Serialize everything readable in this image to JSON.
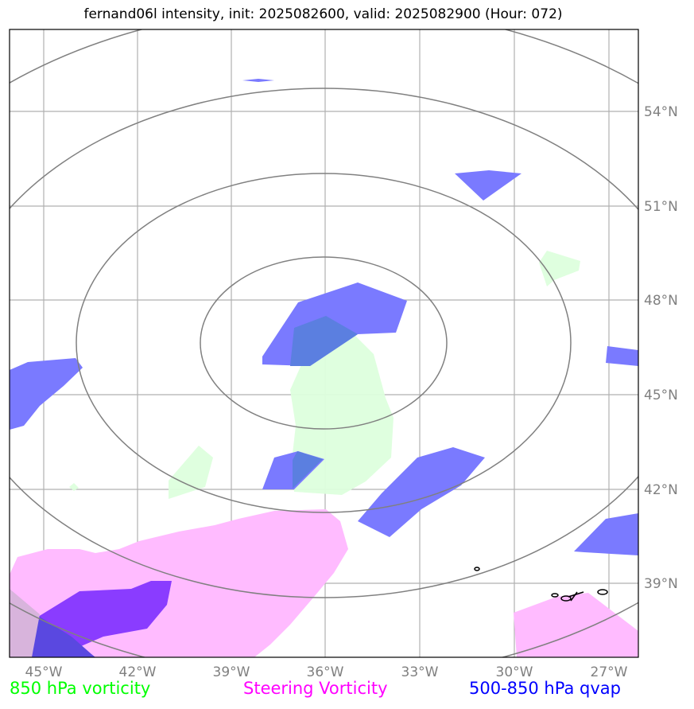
{
  "title": "fernand06l intensity, init: 2025082600, valid: 2025082900 (Hour: 072)",
  "longitude_labels": [
    "45°W",
    "42°W",
    "39°W",
    "36°W",
    "33°W",
    "30°W",
    "27°W"
  ],
  "latitude_labels": [
    "54°N",
    "51°N",
    "48°N",
    "45°N",
    "42°N",
    "39°N"
  ],
  "legend": {
    "vorticity_850": {
      "label": "850 hPa vorticity",
      "color": "#00ff00"
    },
    "steering": {
      "label": "Steering Vorticity",
      "color": "#ff00ff"
    },
    "qvap": {
      "label": "500-850 hPa qvap",
      "color": "#0000ff"
    }
  },
  "colors": {
    "vorticity_fill": "#ddffdd",
    "steering_fill": "#ffbbff",
    "qvap_fill": "#7a7aff",
    "qvap_dark": "#8a3cff",
    "ring": "#808080",
    "grid": "#b0b0b0"
  }
}
